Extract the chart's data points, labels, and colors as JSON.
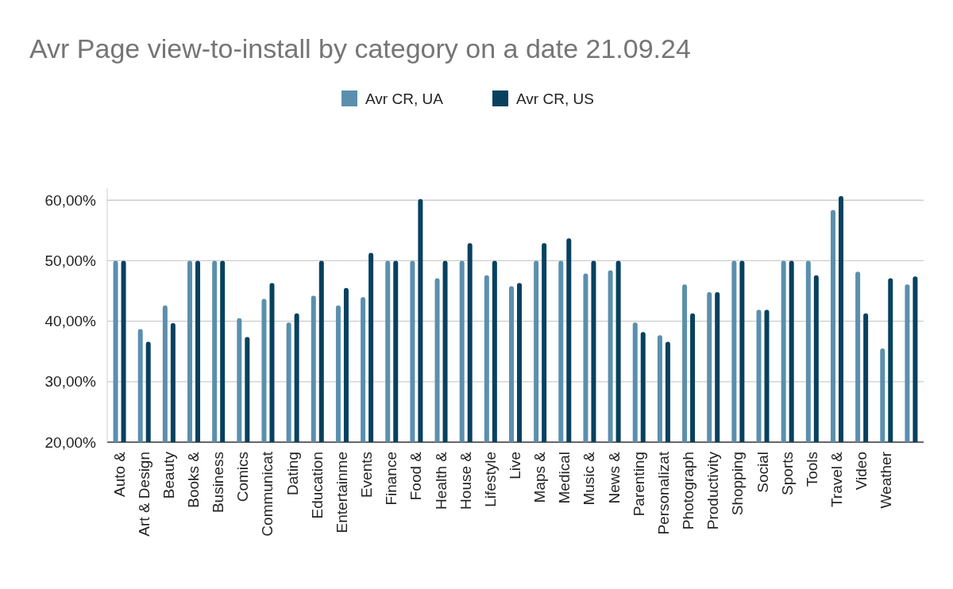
{
  "chart_data": {
    "type": "bar",
    "title": "Avr Page view-to-install by category on a date 21.09.24",
    "categories": [
      "Auto &",
      "Art & Design",
      "Beauty",
      "Books &",
      "Business",
      "Comics",
      "Communicat",
      "Dating",
      "Education",
      "Entertainme",
      "Events",
      "Finance",
      "Food &",
      "Health &",
      "House &",
      "Lifestyle",
      "Live",
      "Maps &",
      "Medical",
      "Music &",
      "News &",
      "Parenting",
      "Personalizat",
      "Photograph",
      "Productivity",
      "Shopping",
      "Social",
      "Sports",
      "Tools",
      "Travel &",
      "Video",
      "Weather",
      null
    ],
    "series": [
      {
        "name": "Avr CR, UA",
        "color": "#5b8fae",
        "values": [
          50,
          38.7,
          42.6,
          50,
          50,
          40.5,
          43.7,
          39.8,
          44.2,
          42.6,
          44,
          50,
          50,
          47.1,
          50,
          47.6,
          45.8,
          50,
          50,
          47.9,
          48.4,
          39.8,
          37.7,
          46.1,
          44.8,
          50,
          41.9,
          50,
          50,
          58.4,
          48.2,
          35.5,
          46.1
        ]
      },
      {
        "name": "Avr CR, US",
        "color": "#07415f",
        "values": [
          50,
          36.6,
          39.7,
          50,
          50,
          37.4,
          46.3,
          41.3,
          50,
          45.5,
          51.3,
          50,
          60.2,
          50,
          52.9,
          50,
          46.3,
          52.9,
          53.7,
          50,
          50,
          38.2,
          36.6,
          41.3,
          44.8,
          50,
          41.9,
          50,
          47.6,
          60.7,
          41.3,
          47.1,
          47.4
        ]
      }
    ],
    "ylim": [
      20,
      62
    ],
    "yticks": [
      {
        "value": 20,
        "label": "20,00%"
      },
      {
        "value": 30,
        "label": "30,00%"
      },
      {
        "value": 40,
        "label": "40,00%"
      },
      {
        "value": 50,
        "label": "50,00%"
      },
      {
        "value": 60,
        "label": "60,00%"
      }
    ],
    "grid": "y",
    "legend": "top"
  }
}
